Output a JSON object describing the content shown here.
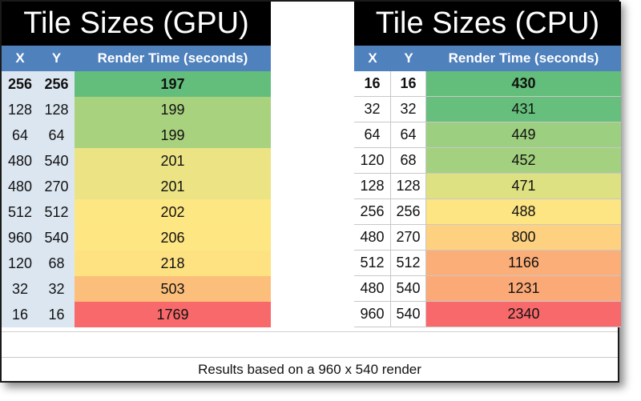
{
  "gpu": {
    "title": "Tile Sizes (GPU)",
    "headers": [
      "X",
      "Y",
      "Render Time (seconds)"
    ],
    "rows": [
      {
        "x": "256",
        "y": "256",
        "time": "197",
        "color": "#63be7b",
        "bold": true
      },
      {
        "x": "128",
        "y": "128",
        "time": "199",
        "color": "#a9d27f",
        "bold": false
      },
      {
        "x": "64",
        "y": "64",
        "time": "199",
        "color": "#a9d27f",
        "bold": false
      },
      {
        "x": "480",
        "y": "540",
        "time": "201",
        "color": "#ebe384",
        "bold": false
      },
      {
        "x": "480",
        "y": "270",
        "time": "201",
        "color": "#ebe384",
        "bold": false
      },
      {
        "x": "512",
        "y": "512",
        "time": "202",
        "color": "#fde783",
        "bold": false
      },
      {
        "x": "960",
        "y": "540",
        "time": "206",
        "color": "#fee683",
        "bold": false
      },
      {
        "x": "120",
        "y": "68",
        "time": "218",
        "color": "#fee282",
        "bold": false
      },
      {
        "x": "32",
        "y": "32",
        "time": "503",
        "color": "#fcbf7b",
        "bold": false
      },
      {
        "x": "16",
        "y": "16",
        "time": "1769",
        "color": "#f8696b",
        "bold": false
      }
    ]
  },
  "cpu": {
    "title": "Tile Sizes (CPU)",
    "headers": [
      "X",
      "Y",
      "Render Time (seconds)"
    ],
    "rows": [
      {
        "x": "16",
        "y": "16",
        "time": "430",
        "color": "#63be7b",
        "bold": true
      },
      {
        "x": "32",
        "y": "32",
        "time": "431",
        "color": "#66bf7c",
        "bold": false
      },
      {
        "x": "64",
        "y": "64",
        "time": "449",
        "color": "#9ccf7f",
        "bold": false
      },
      {
        "x": "120",
        "y": "68",
        "time": "452",
        "color": "#a4d17f",
        "bold": false
      },
      {
        "x": "128",
        "y": "128",
        "time": "471",
        "color": "#dde182",
        "bold": false
      },
      {
        "x": "256",
        "y": "256",
        "time": "488",
        "color": "#fde583",
        "bold": false
      },
      {
        "x": "480",
        "y": "270",
        "time": "800",
        "color": "#fdd17f",
        "bold": false
      },
      {
        "x": "512",
        "y": "512",
        "time": "1166",
        "color": "#fbae78",
        "bold": false
      },
      {
        "x": "480",
        "y": "540",
        "time": "1231",
        "color": "#fba977",
        "bold": false
      },
      {
        "x": "960",
        "y": "540",
        "time": "2340",
        "color": "#f8696b",
        "bold": false
      }
    ]
  },
  "footer": "Results based on a 960 x 540 render"
}
